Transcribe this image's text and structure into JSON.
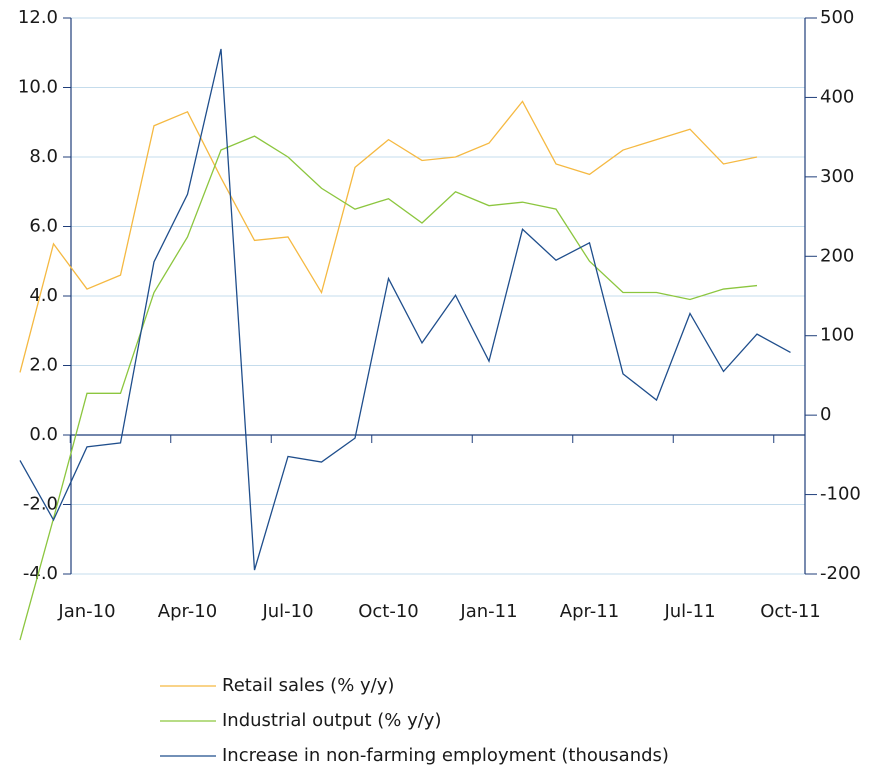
{
  "chart_data": {
    "type": "line",
    "categories": [
      null,
      null,
      "Jan-10",
      null,
      null,
      "Apr-10",
      null,
      null,
      "Jul-10",
      null,
      null,
      "Oct-10",
      null,
      null,
      "Jan-11",
      null,
      null,
      "Apr-11",
      null,
      null,
      "Jul-11",
      null,
      null,
      "Oct-11"
    ],
    "series": [
      {
        "name": "Retail sales (% y/y)",
        "color": "#f5b942",
        "values": [
          1.8,
          5.5,
          4.2,
          4.6,
          8.9,
          9.3,
          7.4,
          5.6,
          5.7,
          4.1,
          7.7,
          8.5,
          7.9,
          8.0,
          8.4,
          9.6,
          7.8,
          7.5,
          8.2,
          8.5,
          8.8,
          7.8,
          8.0,
          null
        ]
      },
      {
        "name": "Industrial output (% y/y)",
        "color": "#8cc63f",
        "values": [
          -5.9,
          -2.4,
          1.2,
          1.2,
          4.1,
          5.7,
          8.2,
          8.6,
          8.0,
          7.1,
          6.5,
          6.8,
          6.1,
          7.0,
          6.6,
          6.7,
          6.5,
          5.0,
          4.1,
          4.1,
          3.9,
          4.2,
          4.3,
          null
        ]
      },
      {
        "name": "Increase in non-farming employment (thousands)",
        "color": "#1f4e8c",
        "axis": "y2",
        "values": [
          -57,
          -132,
          -40,
          -35,
          193,
          278,
          461,
          -195,
          -52,
          -59,
          -29,
          172,
          91,
          151,
          68,
          234,
          195,
          217,
          52,
          19,
          128,
          55,
          102,
          79
        ]
      }
    ],
    "ylim": [
      -4,
      12
    ],
    "yticks": [
      {
        "value": -4,
        "label": "-4.0"
      },
      {
        "value": -2,
        "label": "-2.0"
      },
      {
        "value": 0,
        "label": "0.0"
      },
      {
        "value": 2,
        "label": "2.0"
      },
      {
        "value": 4,
        "label": "4.0"
      },
      {
        "value": 6,
        "label": "6.0"
      },
      {
        "value": 8,
        "label": "8.0"
      },
      {
        "value": 10,
        "label": "10.0"
      },
      {
        "value": 12,
        "label": "12.0"
      }
    ],
    "y2lim": [
      -200,
      500
    ],
    "y2ticks": [
      -200,
      -100,
      0,
      100,
      200,
      300,
      400,
      500
    ],
    "grid": true,
    "legend": "bottom"
  }
}
